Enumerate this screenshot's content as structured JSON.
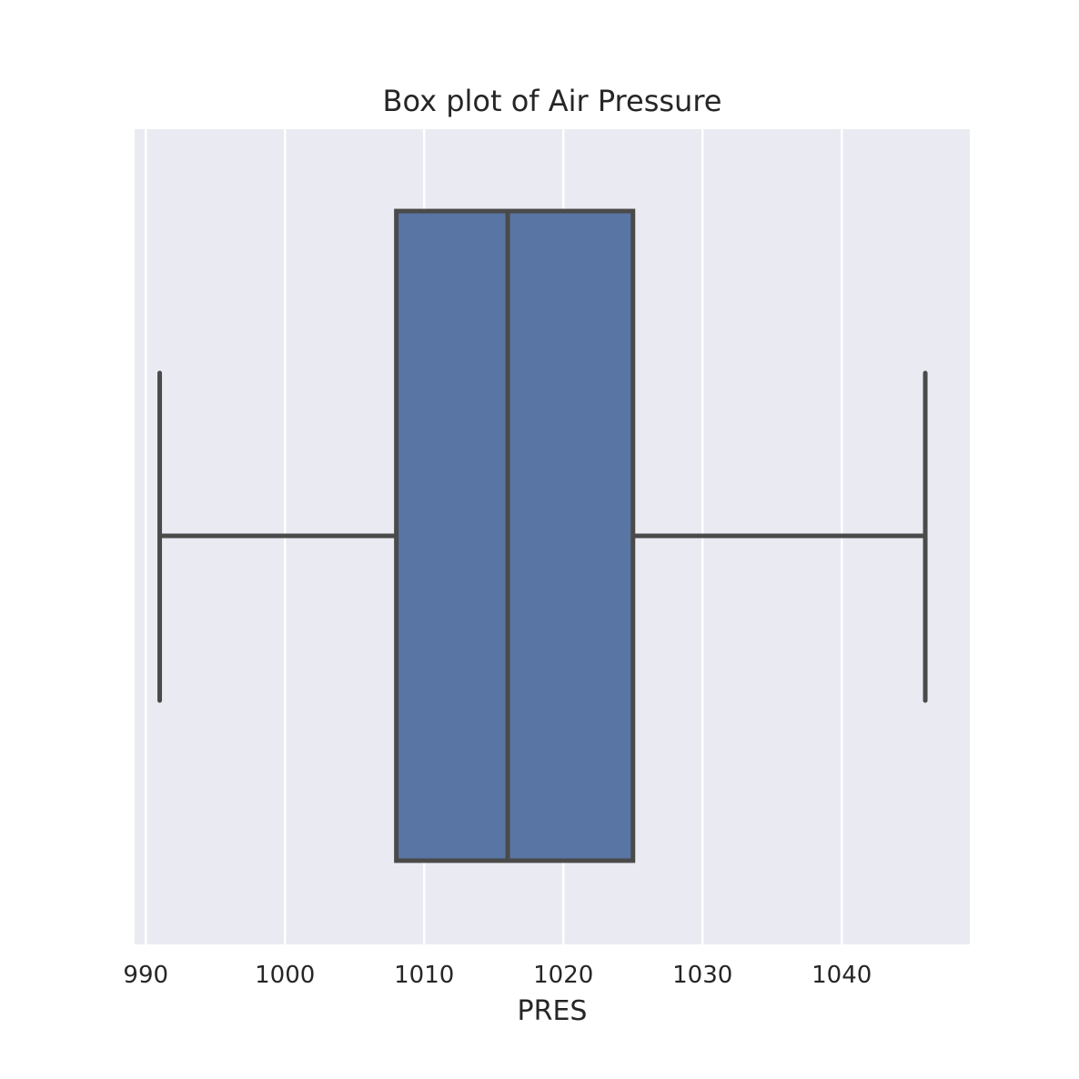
{
  "chart_data": {
    "type": "box",
    "title": "Box plot of Air Pressure",
    "xlabel": "PRES",
    "ylabel": "",
    "orientation": "horizontal",
    "xlim": [
      989.2,
      1049.2
    ],
    "ticks": [
      990,
      1000,
      1010,
      1020,
      1030,
      1040
    ],
    "tick_labels": [
      "990",
      "1000",
      "1010",
      "1020",
      "1030",
      "1040"
    ],
    "grid": true,
    "series": [
      {
        "whisker_low": 991,
        "q1": 1008,
        "median": 1016,
        "q3": 1025,
        "whisker_high": 1046
      }
    ],
    "colors": {
      "background": "#eaeaf2",
      "grid": "#ffffff",
      "box_fill": "#5875a4",
      "line": "#4a4a4a",
      "text": "#262626"
    }
  }
}
